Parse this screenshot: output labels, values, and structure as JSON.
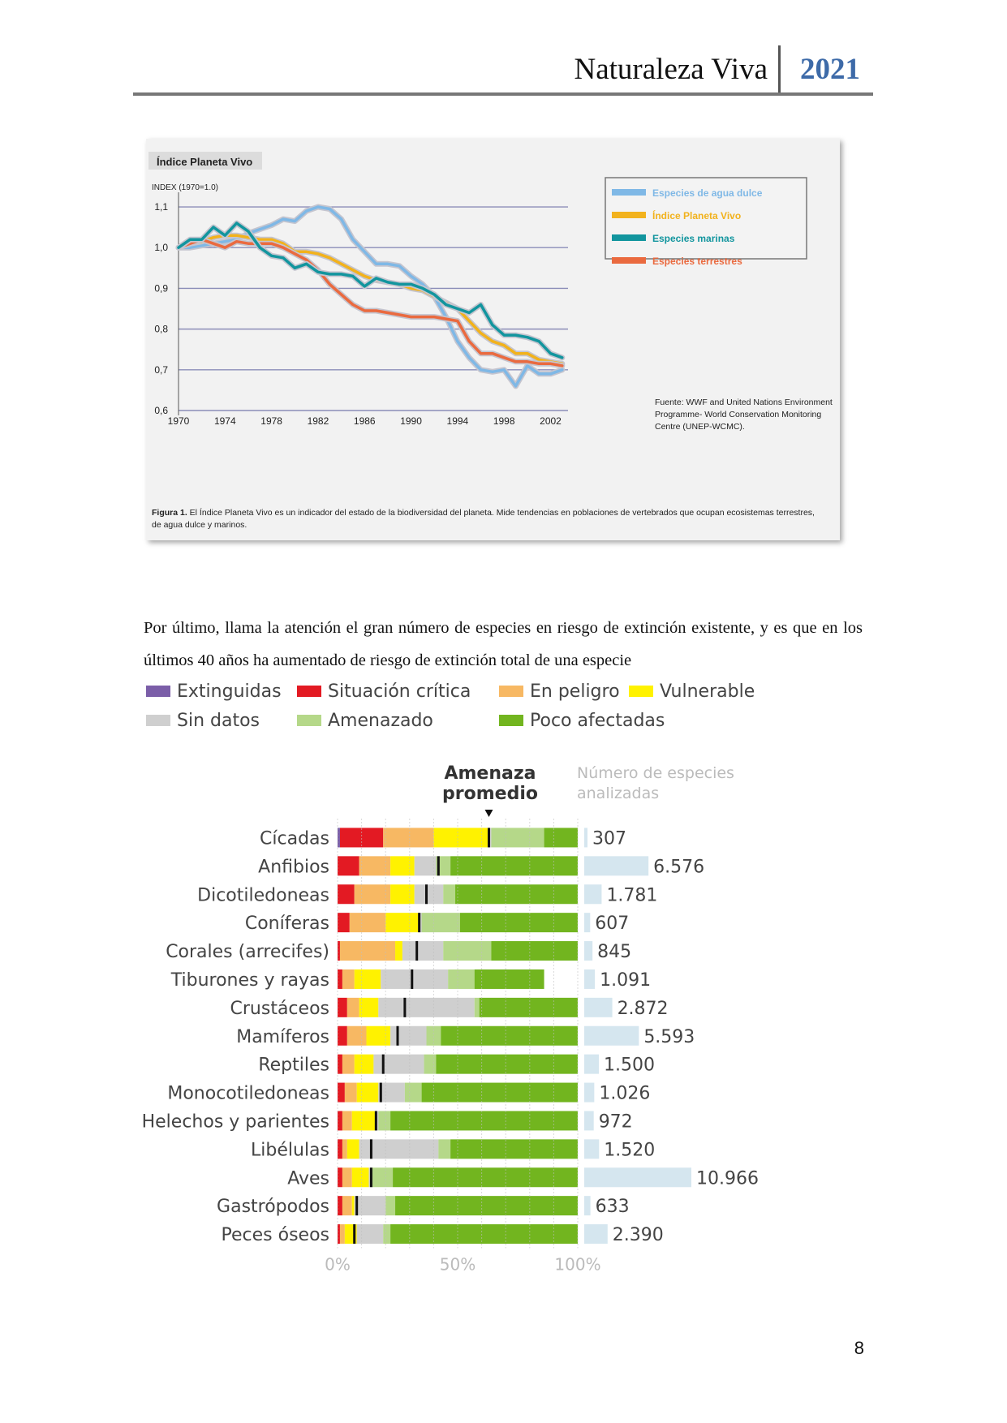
{
  "header": {
    "title": "Naturaleza Viva",
    "year": "2021"
  },
  "figure1": {
    "panel_title": "Índice Planeta Vivo",
    "y_unit": "INDEX (1970=1.0)",
    "caption_bold": "Figura 1.",
    "caption_text": "El Índice Planeta Vivo es un indicador del estado de la biodiversidad del planeta. Mide tendencias en poblaciones de vertebrados que ocupan ecosistemas terrestres,",
    "caption_text_2": "de agua dulce y marinos.",
    "source_lines": [
      "Fuente: WWF and United Nations Environment",
      "Programme- World Conservation Monitoring",
      "Centre (UNEP-WCMC)."
    ],
    "colors": {
      "agua_dulce": "#7fb8e6",
      "ipv": "#f2b21c",
      "marinas": "#12959e",
      "terrestres": "#ea6a3f"
    },
    "chart_data": {
      "type": "line",
      "ylim": [
        0.6,
        1.12
      ],
      "xlim": [
        1970,
        2003.5
      ],
      "y_ticks": [
        "0,6",
        "0,7",
        "0,8",
        "0,9",
        "1,0",
        "1,1"
      ],
      "x_ticks": [
        "1970",
        "1974",
        "1978",
        "1982",
        "1986",
        "1990",
        "1994",
        "1998",
        "2002"
      ],
      "series": [
        {
          "name": "Especies de agua dulce",
          "color": "#7fb8e6",
          "x": [
            1970,
            1971,
            1972,
            1973,
            1974,
            1975,
            1976,
            1977,
            1978,
            1979,
            1980,
            1981,
            1982,
            1983,
            1984,
            1985,
            1986,
            1987,
            1988,
            1989,
            1990,
            1991,
            1992,
            1993,
            1994,
            1995,
            1996,
            1997,
            1998,
            1999,
            2000,
            2001,
            2002,
            2003
          ],
          "y": [
            1.0,
            1.0,
            1.005,
            1.01,
            1.015,
            1.02,
            1.035,
            1.045,
            1.055,
            1.07,
            1.065,
            1.09,
            1.1,
            1.095,
            1.07,
            1.02,
            0.99,
            0.96,
            0.96,
            0.955,
            0.93,
            0.91,
            0.88,
            0.83,
            0.77,
            0.73,
            0.7,
            0.695,
            0.7,
            0.66,
            0.71,
            0.69,
            0.69,
            0.7
          ]
        },
        {
          "name": "Índice Planeta Vivo",
          "color": "#f2b21c",
          "x": [
            1970,
            1971,
            1972,
            1973,
            1974,
            1975,
            1976,
            1977,
            1978,
            1979,
            1980,
            1981,
            1982,
            1983,
            1984,
            1985,
            1986,
            1987,
            1988,
            1989,
            1990,
            1991,
            1992,
            1993,
            1994,
            1995,
            1996,
            1997,
            1998,
            1999,
            2000,
            2001,
            2002,
            2003
          ],
          "y": [
            1.0,
            1.01,
            1.015,
            1.025,
            1.03,
            1.03,
            1.025,
            1.02,
            1.02,
            1.01,
            0.99,
            0.99,
            0.985,
            0.975,
            0.96,
            0.945,
            0.93,
            0.92,
            0.915,
            0.91,
            0.9,
            0.895,
            0.88,
            0.865,
            0.85,
            0.82,
            0.79,
            0.77,
            0.76,
            0.74,
            0.74,
            0.725,
            0.72,
            0.715
          ]
        },
        {
          "name": "Especies marinas",
          "color": "#12959e",
          "x": [
            1970,
            1971,
            1972,
            1973,
            1974,
            1975,
            1976,
            1977,
            1978,
            1979,
            1980,
            1981,
            1982,
            1983,
            1984,
            1985,
            1986,
            1987,
            1988,
            1989,
            1990,
            1991,
            1992,
            1993,
            1994,
            1995,
            1996,
            1997,
            1998,
            1999,
            2000,
            2001,
            2002,
            2003
          ],
          "y": [
            1.0,
            1.02,
            1.02,
            1.05,
            1.03,
            1.06,
            1.04,
            1.0,
            0.98,
            0.975,
            0.95,
            0.96,
            0.94,
            0.935,
            0.935,
            0.93,
            0.905,
            0.925,
            0.915,
            0.91,
            0.91,
            0.9,
            0.885,
            0.86,
            0.85,
            0.84,
            0.86,
            0.81,
            0.785,
            0.785,
            0.78,
            0.77,
            0.74,
            0.73
          ]
        },
        {
          "name": "Especies terrestres",
          "color": "#ea6a3f",
          "x": [
            1970,
            1971,
            1972,
            1973,
            1974,
            1975,
            1976,
            1977,
            1978,
            1979,
            1980,
            1981,
            1982,
            1983,
            1984,
            1985,
            1986,
            1987,
            1988,
            1989,
            1990,
            1991,
            1992,
            1993,
            1994,
            1995,
            1996,
            1997,
            1998,
            1999,
            2000,
            2001,
            2002,
            2003
          ],
          "y": [
            1.0,
            1.01,
            1.02,
            1.01,
            1.0,
            1.015,
            1.01,
            1.01,
            1.01,
            1.0,
            0.985,
            0.97,
            0.945,
            0.91,
            0.885,
            0.86,
            0.845,
            0.845,
            0.84,
            0.835,
            0.83,
            0.83,
            0.83,
            0.825,
            0.82,
            0.77,
            0.74,
            0.74,
            0.73,
            0.72,
            0.72,
            0.715,
            0.715,
            0.71
          ]
        }
      ]
    }
  },
  "paragraph": "Por último, llama la atención el gran número de especies en riesgo de extinción existente, y es que en los últimos 40 años ha aumentado de riesgo de extinción total de una especie",
  "figure2": {
    "legend": [
      {
        "label": "Extinguidas",
        "color": "#7b5ea8"
      },
      {
        "label": "Situación crítica",
        "color": "#e31a23"
      },
      {
        "label": "En peligro",
        "color": "#f7b863"
      },
      {
        "label": "Vulnerable",
        "color": "#fff200"
      },
      {
        "label": "Sin datos",
        "color": "#cfcfcf"
      },
      {
        "label": "Amenazado",
        "color": "#b5d889"
      },
      {
        "label": "Poco afectadas",
        "color": "#72b51f"
      }
    ],
    "avg_label_1": "Amenaza",
    "avg_label_2": "promedio",
    "count_label_1": "Número de especies",
    "count_label_2": "analizadas",
    "chart_data": {
      "type": "bar",
      "orientation": "horizontal",
      "stacked": true,
      "xlim": [
        0,
        100
      ],
      "x_ticks": [
        "0%",
        "50%",
        "100%"
      ],
      "series_order": [
        "Extinguidas",
        "Situación crítica",
        "En peligro",
        "Vulnerable",
        "Sin datos",
        "Amenazado",
        "Poco afectadas"
      ],
      "rows": [
        {
          "name": "Cícadas",
          "values": [
            1,
            18,
            21,
            23,
            1,
            22,
            14
          ],
          "avg": 63,
          "count_label": "307",
          "count": 307
        },
        {
          "name": "Anfibios",
          "values": [
            0,
            9,
            13,
            10,
            9,
            6,
            53
          ],
          "avg": 42,
          "count_label": "6.576",
          "count": 6576
        },
        {
          "name": "Dicotiledoneas",
          "values": [
            0,
            7,
            15,
            10,
            12,
            5,
            51
          ],
          "avg": 37,
          "count_label": "1.781",
          "count": 1781
        },
        {
          "name": "Coníferas",
          "values": [
            0,
            5,
            15,
            14,
            1,
            16,
            49
          ],
          "avg": 34,
          "count_label": "607",
          "count": 607
        },
        {
          "name": "Corales (arrecifes)",
          "values": [
            0,
            1,
            23,
            3,
            17,
            20,
            36
          ],
          "avg": 33,
          "count_label": "845",
          "count": 845
        },
        {
          "name": "Tiburones y rayas",
          "values": [
            0,
            2,
            5,
            11,
            28,
            11,
            29
          ],
          "avg": 31,
          "count_label": "1.091",
          "count": 1091
        },
        {
          "name": "Crustáceos",
          "values": [
            0,
            4,
            5,
            8,
            40,
            2,
            41
          ],
          "avg": 28,
          "count_label": "2.872",
          "count": 2872
        },
        {
          "name": "Mamíferos",
          "values": [
            0,
            4,
            8,
            10,
            15,
            6,
            57
          ],
          "avg": 25,
          "count_label": "5.593",
          "count": 5593
        },
        {
          "name": "Reptiles",
          "values": [
            0,
            2,
            5,
            8,
            21,
            5,
            59
          ],
          "avg": 19,
          "count_label": "1.500",
          "count": 1500
        },
        {
          "name": "Monocotiledoneas",
          "values": [
            0,
            3,
            5,
            9,
            11,
            7,
            65
          ],
          "avg": 18,
          "count_label": "1.026",
          "count": 1026
        },
        {
          "name": "Helechos y parientes",
          "values": [
            0,
            2,
            4,
            10,
            1,
            5,
            78
          ],
          "avg": 16,
          "count_label": "972",
          "count": 972
        },
        {
          "name": "Libélulas",
          "values": [
            0,
            2,
            2,
            5,
            33,
            5,
            53
          ],
          "avg": 14,
          "count_label": "1.520",
          "count": 1520
        },
        {
          "name": "Aves",
          "values": [
            0,
            2,
            4,
            7,
            1,
            9,
            77
          ],
          "avg": 14,
          "count_label": "10.966",
          "count": 10966
        },
        {
          "name": "Gastrópodos",
          "values": [
            0,
            2,
            4,
            1,
            13,
            4,
            76
          ],
          "avg": 8,
          "count_label": "633",
          "count": 633
        },
        {
          "name": "Peces óseos",
          "values": [
            0,
            1,
            2,
            5,
            11,
            3,
            78
          ],
          "avg": 7,
          "count_label": "2.390",
          "count": 2390
        }
      ]
    }
  },
  "page_number": "8"
}
